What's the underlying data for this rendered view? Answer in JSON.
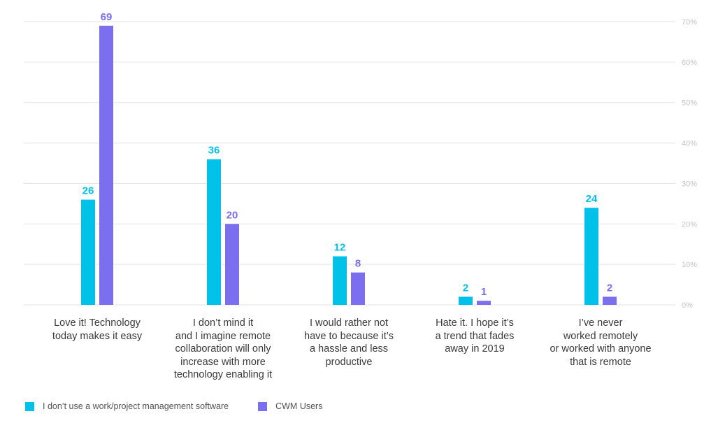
{
  "chart_data": {
    "type": "bar",
    "categories": [
      [
        "Love it! Technology",
        "today makes it easy"
      ],
      [
        "I don’t mind it",
        "and I imagine remote",
        "collaboration will only",
        "increase with more",
        "technology enabling it"
      ],
      [
        "I would rather not",
        "have to because it’s",
        "a hassle and less",
        "productive"
      ],
      [
        "Hate it. I hope it’s",
        "a trend that fades",
        "away in 2019"
      ],
      [
        "I’ve never",
        "worked remotely",
        "or worked with anyone",
        "that is remote"
      ]
    ],
    "series": [
      {
        "name": "I don’t use a work/project management software",
        "color": "#00c1e8",
        "values": [
          26,
          36,
          12,
          2,
          24
        ],
        "labels": [
          "26",
          "36",
          "12",
          "2",
          "24"
        ]
      },
      {
        "name": "CWM Users",
        "color": "#7b6ff0",
        "values": [
          69,
          20,
          8,
          1,
          2
        ],
        "labels": [
          "69",
          "20",
          "8",
          "1",
          "2"
        ]
      }
    ],
    "y_ticks": [
      0,
      10,
      20,
      30,
      40,
      50,
      60,
      70
    ],
    "y_tick_labels": [
      "0%",
      "10%",
      "20%",
      "30%",
      "40%",
      "50%",
      "60%",
      "70%"
    ],
    "ylim": [
      0,
      70
    ],
    "y_axis_side": "right",
    "legend_position": "bottom-left",
    "grid": true
  }
}
